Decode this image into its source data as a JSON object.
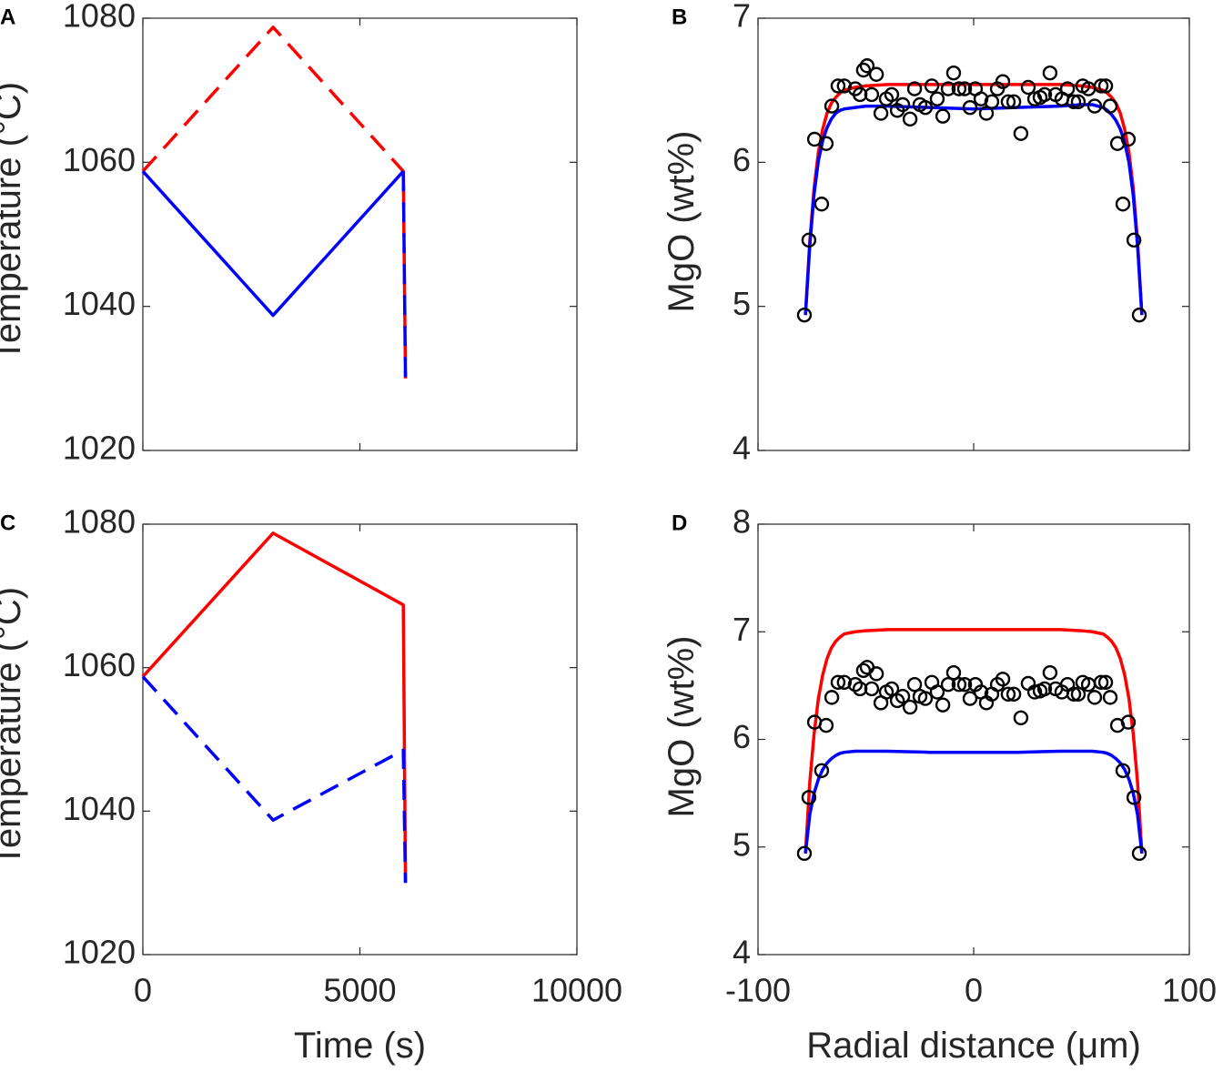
{
  "chart_data": [
    {
      "type": "line",
      "label": "A",
      "ylabel": "Temperature (°C)",
      "xlim": [
        0,
        10000
      ],
      "xticks": [
        0,
        5000,
        10000
      ],
      "show_xtick_labels": false,
      "ylim": [
        1020,
        1080
      ],
      "yticks": [
        1020,
        1040,
        1060,
        1080
      ],
      "series": [
        {
          "color": "#ff0000",
          "line": "dashed",
          "x": [
            0,
            3000,
            6000,
            6050
          ],
          "values": [
            1058.75,
            1078.75,
            1058.75,
            1030
          ]
        },
        {
          "color": "#0000ff",
          "line": "solid",
          "x": [
            0,
            3000,
            6000
          ],
          "values": [
            1058.75,
            1038.75,
            1058.75
          ]
        },
        {
          "color": "#0000ff",
          "line": "dashed",
          "x": [
            6000,
            6050
          ],
          "values": [
            1058.75,
            1030
          ]
        }
      ]
    },
    {
      "type": "line",
      "label": "B",
      "ylabel": "MgO (wt%)",
      "xlim": [
        -100,
        100
      ],
      "xticks": [
        -100,
        0,
        100
      ],
      "show_xtick_labels": false,
      "ylim": [
        4,
        7
      ],
      "yticks": [
        4,
        5,
        6,
        7
      ],
      "series": [
        {
          "color": "#ff0000",
          "line": "solid",
          "x": [
            -78,
            -76,
            -74,
            -72,
            -70,
            -68,
            -66,
            -64,
            -62,
            -60,
            -55,
            -50,
            -40,
            -20,
            0,
            20,
            40,
            50,
            55,
            60,
            62,
            64,
            66,
            68,
            70,
            72,
            74,
            76,
            78
          ],
          "values": [
            4.94,
            5.45,
            5.82,
            6.07,
            6.23,
            6.34,
            6.41,
            6.45,
            6.48,
            6.5,
            6.52,
            6.53,
            6.54,
            6.54,
            6.54,
            6.54,
            6.54,
            6.53,
            6.52,
            6.5,
            6.48,
            6.45,
            6.41,
            6.34,
            6.23,
            6.07,
            5.82,
            5.45,
            4.94
          ]
        },
        {
          "color": "#0000ff",
          "line": "solid",
          "x": [
            -78,
            -76,
            -74,
            -72,
            -70,
            -68,
            -66,
            -64,
            -62,
            -60,
            -55,
            -50,
            -40,
            -20,
            0,
            20,
            40,
            50,
            55,
            60,
            62,
            64,
            66,
            68,
            70,
            72,
            74,
            76,
            78
          ],
          "values": [
            4.94,
            5.42,
            5.78,
            6.01,
            6.15,
            6.24,
            6.3,
            6.34,
            6.36,
            6.37,
            6.38,
            6.39,
            6.39,
            6.38,
            6.37,
            6.38,
            6.39,
            6.4,
            6.4,
            6.38,
            6.36,
            6.33,
            6.29,
            6.23,
            6.14,
            6,
            5.77,
            5.42,
            4.94
          ]
        },
        {
          "color": "#000000",
          "line": "none",
          "marker": "circle",
          "x": [
            -78.5,
            -76.4,
            -73.8,
            -70.5,
            -68.4,
            -65.8,
            -62.9,
            -60,
            -54.9,
            -52.7,
            -51.1,
            -49.4,
            -47.3,
            -45.1,
            -43,
            -40.5,
            -38,
            -35.4,
            -32.9,
            -29.5,
            -27.4,
            -24.9,
            -22.4,
            -19.4,
            -16.9,
            -14.3,
            -11.8,
            -9.3,
            -6.8,
            -4.2,
            -1.7,
            0.8,
            3.4,
            5.9,
            8.4,
            11,
            13.5,
            16,
            18.6,
            21.9,
            25.3,
            28.3,
            30.8,
            32.9,
            35.4,
            38,
            40.9,
            43.5,
            46.4,
            48.5,
            50.6,
            53.2,
            56.1,
            59.1,
            61.2,
            63.3,
            66.7,
            69.2,
            71.7,
            74.3,
            76.8
          ],
          "values": [
            4.94,
            5.46,
            6.16,
            5.71,
            6.13,
            6.39,
            6.53,
            6.53,
            6.51,
            6.47,
            6.64,
            6.67,
            6.47,
            6.61,
            6.34,
            6.44,
            6.47,
            6.36,
            6.4,
            6.3,
            6.51,
            6.4,
            6.38,
            6.53,
            6.44,
            6.32,
            6.51,
            6.62,
            6.51,
            6.51,
            6.38,
            6.51,
            6.44,
            6.34,
            6.42,
            6.51,
            6.56,
            6.42,
            6.42,
            6.2,
            6.52,
            6.44,
            6.45,
            6.47,
            6.62,
            6.47,
            6.44,
            6.51,
            6.42,
            6.42,
            6.53,
            6.51,
            6.39,
            6.53,
            6.53,
            6.39,
            6.13,
            5.71,
            6.16,
            5.46,
            4.94
          ]
        }
      ]
    },
    {
      "type": "line",
      "label": "C",
      "ylabel": "Temperature (°C)",
      "xlabel": "Time (s)",
      "xlim": [
        0,
        10000
      ],
      "xticks": [
        0,
        5000,
        10000
      ],
      "show_xtick_labels": true,
      "ylim": [
        1020,
        1080
      ],
      "yticks": [
        1020,
        1040,
        1060,
        1080
      ],
      "series": [
        {
          "color": "#ff0000",
          "line": "solid",
          "x": [
            0,
            3000,
            6000,
            6050
          ],
          "values": [
            1058.75,
            1078.75,
            1068.75,
            1030
          ]
        },
        {
          "color": "#0000ff",
          "line": "dashed",
          "x": [
            0,
            3000,
            6000,
            6050
          ],
          "values": [
            1058.75,
            1038.75,
            1048.5,
            1030
          ]
        }
      ]
    },
    {
      "type": "line",
      "label": "D",
      "ylabel": "MgO (wt%)",
      "xlabel": "Radial distance (μm)",
      "xlim": [
        -100,
        100
      ],
      "xticks": [
        -100,
        0,
        100
      ],
      "show_xtick_labels": true,
      "ylim": [
        4,
        8
      ],
      "yticks": [
        4,
        5,
        6,
        7,
        8
      ],
      "series": [
        {
          "color": "#ff0000",
          "line": "solid",
          "x": [
            -78,
            -76,
            -74,
            -72,
            -70,
            -68,
            -66,
            -64,
            -62,
            -60,
            -55,
            -50,
            -40,
            -20,
            0,
            20,
            40,
            50,
            55,
            60,
            62,
            64,
            66,
            68,
            70,
            72,
            74,
            76,
            78
          ],
          "values": [
            4.94,
            5.6,
            6.05,
            6.38,
            6.6,
            6.75,
            6.85,
            6.91,
            6.95,
            6.98,
            7,
            7.01,
            7.02,
            7.02,
            7.02,
            7.02,
            7.02,
            7.01,
            7,
            6.98,
            6.95,
            6.91,
            6.85,
            6.75,
            6.6,
            6.38,
            6.05,
            5.6,
            4.94
          ]
        },
        {
          "color": "#0000ff",
          "line": "solid",
          "x": [
            -78,
            -76,
            -74,
            -72,
            -70,
            -68,
            -66,
            -64,
            -62,
            -60,
            -55,
            -50,
            -40,
            -20,
            0,
            20,
            40,
            50,
            55,
            60,
            62,
            64,
            66,
            68,
            70,
            72,
            74,
            76,
            78
          ],
          "values": [
            4.94,
            5.3,
            5.5,
            5.63,
            5.72,
            5.78,
            5.82,
            5.85,
            5.87,
            5.88,
            5.89,
            5.89,
            5.89,
            5.88,
            5.88,
            5.88,
            5.89,
            5.89,
            5.89,
            5.88,
            5.87,
            5.85,
            5.82,
            5.78,
            5.72,
            5.63,
            5.5,
            5.3,
            4.94
          ]
        },
        {
          "color": "#000000",
          "line": "none",
          "marker": "circle",
          "x": [
            -78.5,
            -76.4,
            -73.8,
            -70.5,
            -68.4,
            -65.8,
            -62.9,
            -60,
            -54.9,
            -52.7,
            -51.1,
            -49.4,
            -47.3,
            -45.1,
            -43,
            -40.5,
            -38,
            -35.4,
            -32.9,
            -29.5,
            -27.4,
            -24.9,
            -22.4,
            -19.4,
            -16.9,
            -14.3,
            -11.8,
            -9.3,
            -6.8,
            -4.2,
            -1.7,
            0.8,
            3.4,
            5.9,
            8.4,
            11,
            13.5,
            16,
            18.6,
            21.9,
            25.3,
            28.3,
            30.8,
            32.9,
            35.4,
            38,
            40.9,
            43.5,
            46.4,
            48.5,
            50.6,
            53.2,
            56.1,
            59.1,
            61.2,
            63.3,
            66.7,
            69.2,
            71.7,
            74.3,
            76.8
          ],
          "values": [
            4.94,
            5.46,
            6.16,
            5.71,
            6.13,
            6.39,
            6.53,
            6.53,
            6.51,
            6.47,
            6.64,
            6.67,
            6.47,
            6.61,
            6.34,
            6.44,
            6.47,
            6.36,
            6.4,
            6.3,
            6.51,
            6.4,
            6.38,
            6.53,
            6.44,
            6.32,
            6.51,
            6.62,
            6.51,
            6.51,
            6.38,
            6.51,
            6.44,
            6.34,
            6.42,
            6.51,
            6.56,
            6.42,
            6.42,
            6.2,
            6.52,
            6.44,
            6.45,
            6.47,
            6.62,
            6.47,
            6.44,
            6.51,
            6.42,
            6.42,
            6.53,
            6.51,
            6.39,
            6.53,
            6.53,
            6.39,
            6.13,
            5.71,
            6.16,
            5.46,
            4.94
          ]
        }
      ]
    }
  ]
}
